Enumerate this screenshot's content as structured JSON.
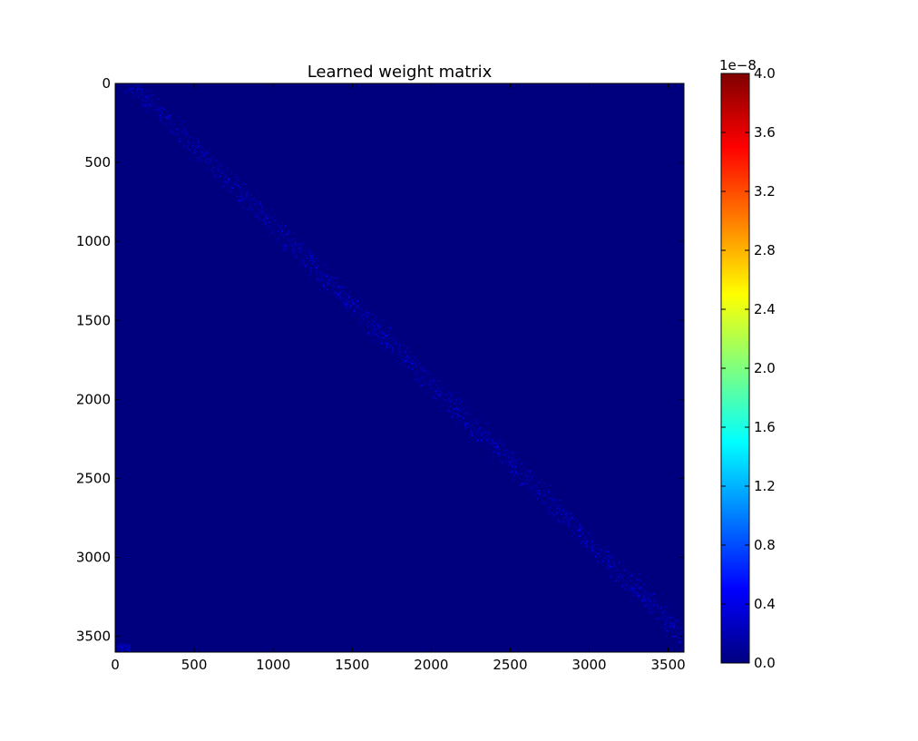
{
  "chart_data": {
    "type": "heatmap",
    "title": "Learned weight matrix",
    "xlabel": "",
    "ylabel": "",
    "xlim": [
      0,
      3600
    ],
    "ylim": [
      3600,
      0
    ],
    "x_ticks": [
      0,
      500,
      1000,
      1500,
      2000,
      2500,
      3000,
      3500
    ],
    "x_tick_labels": [
      "0",
      "500",
      "1000",
      "1500",
      "2000",
      "2500",
      "3000",
      "3500"
    ],
    "y_ticks": [
      0,
      500,
      1000,
      1500,
      2000,
      2500,
      3000,
      3500
    ],
    "y_tick_labels": [
      "0",
      "500",
      "1000",
      "1500",
      "2000",
      "2500",
      "3000",
      "3500"
    ],
    "colormap": "jet",
    "background_color": "#00007f",
    "diagonal_band": {
      "from": [
        100,
        0
      ],
      "to": [
        3600,
        3500
      ],
      "halfwidth": 60,
      "value_range": [
        2e-10,
        5e-09
      ]
    },
    "corner_spots": [
      {
        "x": 50,
        "y": 3570,
        "halfwidth": 40
      }
    ],
    "grid": false,
    "colorbar": {
      "min": 0.0,
      "max": 4.0,
      "ticks": [
        "0.0",
        "0.4",
        "0.8",
        "1.2",
        "1.6",
        "2.0",
        "2.4",
        "2.8",
        "3.2",
        "3.6",
        "4.0"
      ],
      "offset_text": "1e−8",
      "stops": [
        "#00007f",
        "#0000ff",
        "#007fff",
        "#00ffff",
        "#7fff7f",
        "#ffff00",
        "#ff7f00",
        "#ff0000",
        "#7f0000"
      ]
    }
  }
}
